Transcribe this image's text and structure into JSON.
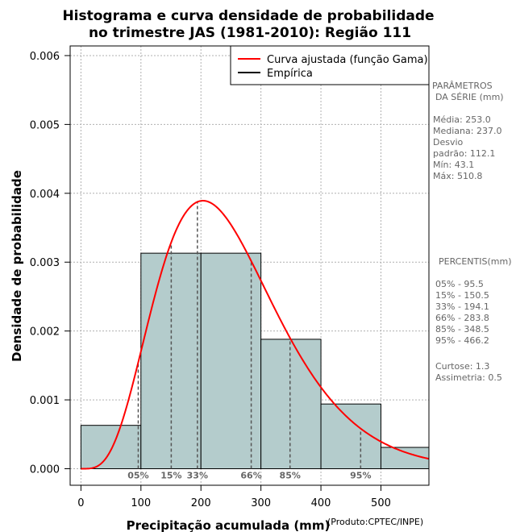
{
  "chart_data": {
    "type": "bar",
    "title_line1": "Histograma e curva densidade de probabilidade",
    "title_line2": "no trimestre JAS (1981-2010): Região 111",
    "xlabel": "Precipitação acumulada (mm)",
    "ylabel": "Densidade de probabilidade",
    "credit": "(Produto:CPTEC/INPE)",
    "xlim": [
      -18,
      580
    ],
    "ylim": [
      -0.00024,
      0.00614
    ],
    "x_ticks": [
      0,
      100,
      200,
      300,
      400,
      500
    ],
    "x_tick_labels": [
      "0",
      "100",
      "200",
      "300",
      "400",
      "500"
    ],
    "y_ticks": [
      0,
      0.001,
      0.002,
      0.003,
      0.004,
      0.005,
      0.006
    ],
    "y_tick_labels": [
      "0.000",
      "0.001",
      "0.002",
      "0.003",
      "0.004",
      "0.005",
      "0.006"
    ],
    "histogram": {
      "name": "Empírica",
      "bins": [
        {
          "x0": 0,
          "x1": 100,
          "density": 0.00063
        },
        {
          "x0": 100,
          "x1": 200,
          "density": 0.00313
        },
        {
          "x0": 200,
          "x1": 300,
          "density": 0.00313
        },
        {
          "x0": 300,
          "x1": 400,
          "density": 0.00188
        },
        {
          "x0": 400,
          "x1": 500,
          "density": 0.00094
        },
        {
          "x0": 500,
          "x1": 600,
          "density": 0.00031
        }
      ]
    },
    "fitted_curve": {
      "name": "Curva ajustada (função Gama)",
      "distribution": "gamma",
      "shape": 5.1,
      "scale": 49.6,
      "color": "#ff0000"
    },
    "percentile_markers": [
      {
        "label": "05%",
        "value": 95.5
      },
      {
        "label": "15%",
        "value": 150.5
      },
      {
        "label": "33%",
        "value": 194.1
      },
      {
        "label": "66%",
        "value": 283.8
      },
      {
        "label": "85%",
        "value": 348.5
      },
      {
        "label": "95%",
        "value": 466.2
      }
    ],
    "legend": {
      "placement": "top-right",
      "entries": [
        {
          "label": "Curva ajustada (função Gama)",
          "color": "#ff0000"
        },
        {
          "label": "Empírica",
          "color": "#000000"
        }
      ]
    },
    "grid": true
  },
  "stats_panel": {
    "params_title_1": "PARÂMETROS",
    "params_title_2": "DA SÉRIE (mm)",
    "media": "Média:  253.0",
    "mediana": "Mediana:  237.0",
    "desvio_1": "Desvio",
    "desvio_2": "padrão:  112.1",
    "min": "Mín:  43.1",
    "max": "Máx:  510.8",
    "percentis_title": "PERCENTIS(mm)",
    "p05": "05% -   95.5",
    "p15": "15% -   150.5",
    "p33": "33% -   194.1",
    "p66": "66% -   283.8",
    "p85": "85% -   348.5",
    "p95": "95% -   466.2",
    "curtose": "Curtose:  1.3",
    "assimetria": "Assimetria:  0.5"
  },
  "colors": {
    "bar_fill": "#b4cccc",
    "curve": "#ff0000",
    "grid": "#b0b0b0",
    "side_text": "#666666"
  }
}
